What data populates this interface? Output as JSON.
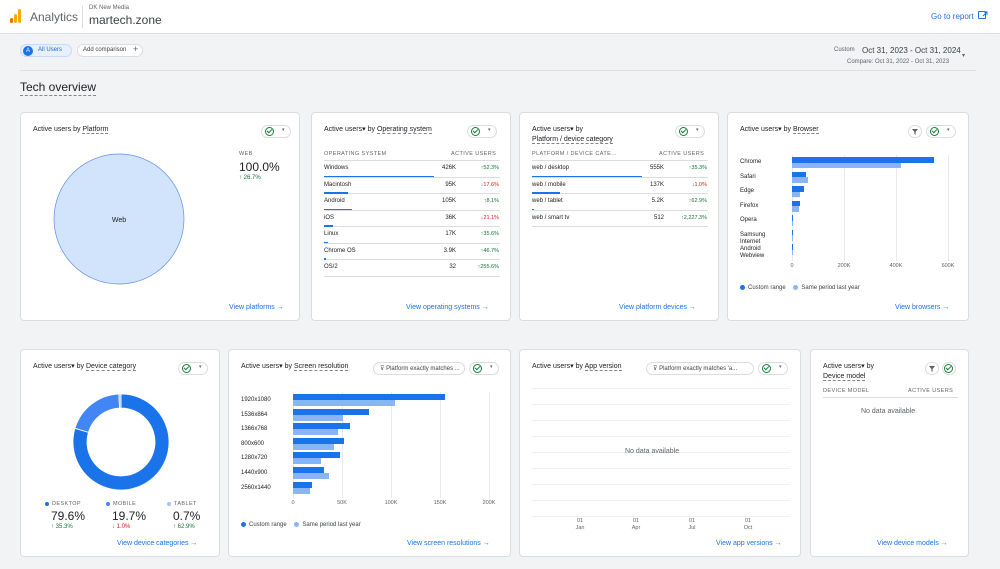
{
  "colors": {
    "brand_blue": "#1a73e8",
    "light_blue": "#8ab4f8",
    "pie_fill": "#d2e3fc",
    "up": "#137333",
    "down": "#c5221f"
  },
  "header": {
    "app_name": "Analytics",
    "account_name": "DK New Media",
    "property_name": "martech.zone",
    "goto_report": "Go to report",
    "goto_icon": "external-link-icon"
  },
  "toolbar": {
    "all_users_avatar": "A",
    "all_users": "All Users",
    "add_comparison": "Add comparison",
    "add_icon": "+",
    "date_mode": "Custom",
    "date_range": "Oct 31, 2023 - Oct 31, 2024",
    "compare_range": "Compare: Oct 31, 2022 - Oct 31, 2023"
  },
  "page_title": "Tech overview",
  "common": {
    "active_users": "Active users",
    "by": "by",
    "caret": "▾",
    "filter_icon": "filter-icon"
  },
  "platform_card": {
    "title_prefix": "Active users by",
    "title_dim": "Platform",
    "pie_label": "Web",
    "stat_label": "WEB",
    "stat_value": "100.0%",
    "stat_change": "↑ 26.7%",
    "link": "View platforms →"
  },
  "os_card": {
    "title_dim": "Operating system",
    "col_dim": "OPERATING SYSTEM",
    "col_metric": "ACTIVE USERS",
    "rows": [
      {
        "label": "Windows",
        "value": "426K",
        "change": "↑52.3%",
        "dir": "up",
        "share": 1.0
      },
      {
        "label": "Macintosh",
        "value": "95K",
        "change": "↓17.6%",
        "dir": "down",
        "share": 0.22
      },
      {
        "label": "Android",
        "value": "105K",
        "change": "↑8.1%",
        "dir": "up",
        "share": 0.25
      },
      {
        "label": "iOS",
        "value": "36K",
        "change": "↓21.1%",
        "dir": "down",
        "share": 0.085
      },
      {
        "label": "Linux",
        "value": "17K",
        "change": "↑35.6%",
        "dir": "up",
        "share": 0.04
      },
      {
        "label": "Chrome OS",
        "value": "3.9K",
        "change": "↑46.7%",
        "dir": "up",
        "share": 0.01
      },
      {
        "label": "OS/2",
        "value": "32",
        "change": "↑255.6%",
        "dir": "up",
        "share": 0.0
      }
    ],
    "link": "View operating systems →"
  },
  "device_platform_card": {
    "title_dim": "Platform / device category",
    "col_dim": "PLATFORM / DEVICE CATE...",
    "col_metric": "ACTIVE USERS",
    "rows": [
      {
        "label": "web / desktop",
        "value": "555K",
        "change": "↑35.3%",
        "dir": "up",
        "share": 1.0
      },
      {
        "label": "web / mobile",
        "value": "137K",
        "change": "↓1.0%",
        "dir": "down",
        "share": 0.25
      },
      {
        "label": "web / tablet",
        "value": "5.2K",
        "change": "↑62.9%",
        "dir": "up",
        "share": 0.01
      },
      {
        "label": "web / smart tv",
        "value": "512",
        "change": "↑2,227.3%",
        "dir": "up",
        "share": 0.0
      }
    ],
    "link": "View platform devices →"
  },
  "browser_card": {
    "title_dim": "Browser",
    "categories": [
      "Chrome",
      "Safari",
      "Edge",
      "Firefox",
      "Opera",
      "Samsung Internet",
      "Android Webview"
    ],
    "ticks": [
      "0",
      "200K",
      "400K",
      "600K"
    ],
    "legend_current": "Custom range",
    "legend_previous": "Same period last year",
    "link": "View browsers →"
  },
  "device_category_card": {
    "title_dim": "Device category",
    "stats": [
      {
        "label": "DESKTOP",
        "value": "79.6%",
        "change": "↑ 35.3%",
        "dir": "up",
        "color": "#1a73e8"
      },
      {
        "label": "MOBILE",
        "value": "19.7%",
        "change": "↓ 1.0%",
        "dir": "down",
        "color": "#4285f4"
      },
      {
        "label": "TABLET",
        "value": "0.7%",
        "change": "↑ 62.9%",
        "dir": "up",
        "color": "#a1c2fa"
      }
    ],
    "link": "View device categories →"
  },
  "resolution_card": {
    "title_dim": "Screen resolution",
    "filter": "Platform exactly matches ...",
    "categories": [
      "1920x1080",
      "1536x864",
      "1366x768",
      "800x600",
      "1280x720",
      "1440x900",
      "2560x1440"
    ],
    "ticks": [
      "0",
      "50K",
      "100K",
      "150K",
      "200K"
    ],
    "legend_current": "Custom range",
    "legend_previous": "Same period last year",
    "link": "View screen resolutions →"
  },
  "app_version_card": {
    "title_dim": "App version",
    "filter": "Platform exactly matches 'a...",
    "no_data": "No data available",
    "x_ticks": [
      {
        "day": "01",
        "month": "Jan"
      },
      {
        "day": "01",
        "month": "Apr"
      },
      {
        "day": "01",
        "month": "Jul"
      },
      {
        "day": "01",
        "month": "Oct"
      }
    ],
    "link": "View app versions →"
  },
  "device_model_card": {
    "title_dim": "Device model",
    "col_dim": "DEVICE MODEL",
    "col_metric": "ACTIVE USERS",
    "no_data": "No data available",
    "link": "View device models →"
  },
  "chart_data": [
    {
      "type": "pie",
      "title": "Active users by Platform",
      "categories": [
        "Web"
      ],
      "values": [
        100.0
      ]
    },
    {
      "type": "bar",
      "title": "Active users by Browser",
      "categories": [
        "Chrome",
        "Safari",
        "Edge",
        "Firefox",
        "Opera",
        "Samsung Internet",
        "Android Webview"
      ],
      "series": [
        {
          "name": "Custom range",
          "values": [
            545000,
            55000,
            48000,
            30000,
            4000,
            2500,
            2000
          ]
        },
        {
          "name": "Same period last year",
          "values": [
            420000,
            60000,
            30000,
            25000,
            3500,
            2000,
            1500
          ]
        }
      ],
      "xlim": [
        0,
        600000
      ],
      "legend": "bottom"
    },
    {
      "type": "pie",
      "title": "Active users by Device category",
      "categories": [
        "DESKTOP",
        "MOBILE",
        "TABLET"
      ],
      "values": [
        79.6,
        19.7,
        0.7
      ]
    },
    {
      "type": "bar",
      "title": "Active users by Screen resolution",
      "categories": [
        "1920x1080",
        "1536x864",
        "1366x768",
        "800x600",
        "1280x720",
        "1440x900",
        "2560x1440"
      ],
      "series": [
        {
          "name": "Custom range",
          "values": [
            155000,
            78000,
            58000,
            52000,
            48000,
            32000,
            19000
          ]
        },
        {
          "name": "Same period last year",
          "values": [
            104000,
            51000,
            46000,
            42000,
            29000,
            37000,
            17000
          ]
        }
      ],
      "xlim": [
        0,
        200000
      ],
      "legend": "bottom"
    }
  ]
}
